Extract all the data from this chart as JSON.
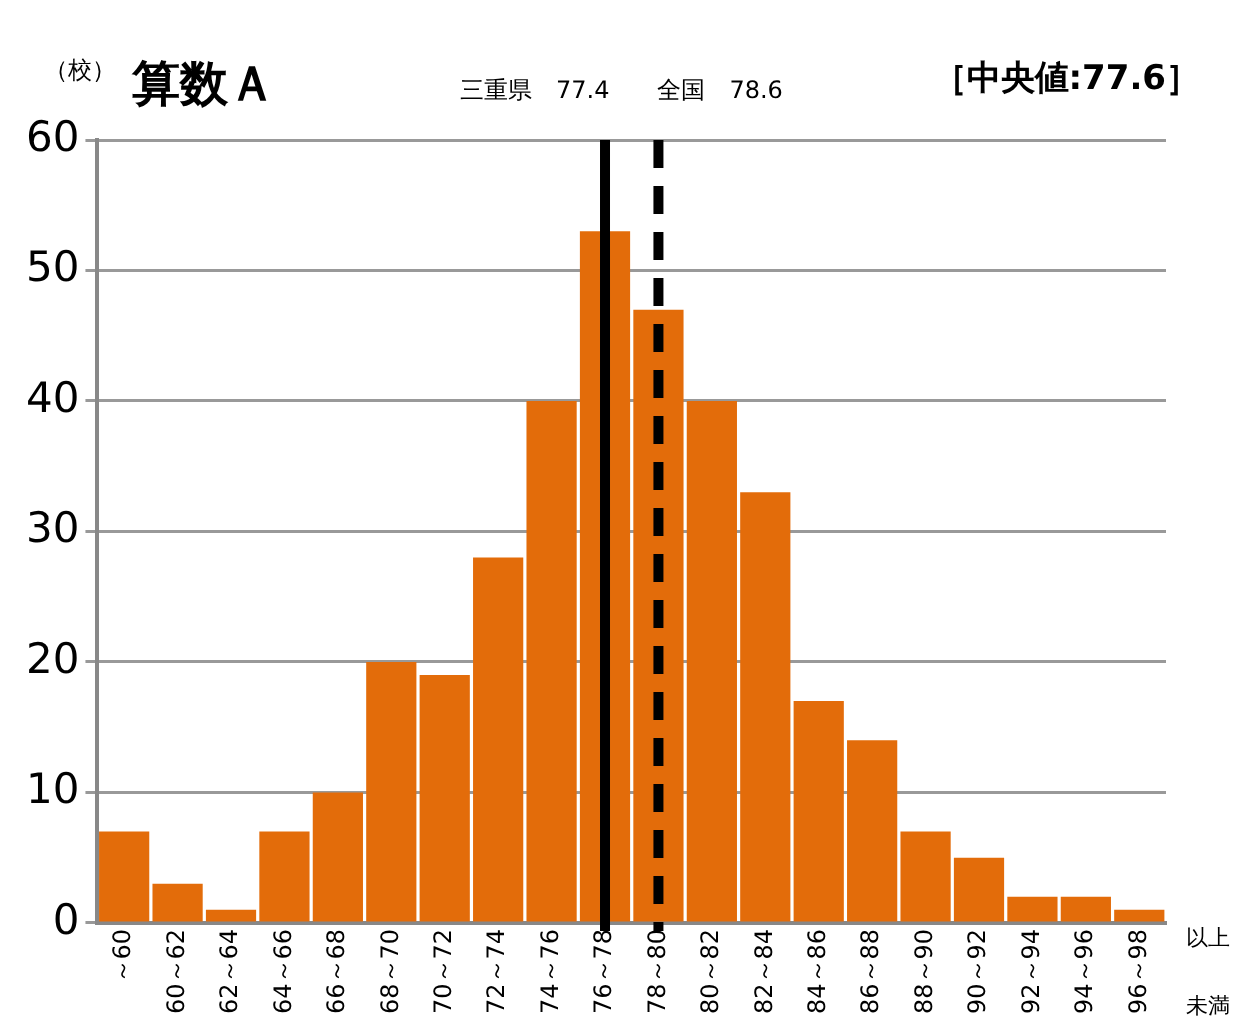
{
  "chart_data": {
    "type": "bar",
    "title": "算数Ａ",
    "ylabel": "（校）",
    "categories": [
      "～60",
      "60～62",
      "62～64",
      "64～66",
      "66～68",
      "68～70",
      "70～72",
      "72～74",
      "74～76",
      "76～78",
      "78～80",
      "80～82",
      "82～84",
      "84～86",
      "86～88",
      "88～90",
      "90～92",
      "92～94",
      "94～96",
      "96～98"
    ],
    "values": [
      7,
      3,
      1,
      7,
      10,
      20,
      19,
      28,
      40,
      53,
      47,
      40,
      33,
      17,
      14,
      7,
      5,
      2,
      2,
      1
    ],
    "color": "#e36c0a",
    "ylim": [
      0,
      60
    ],
    "yticks": [
      0,
      10,
      20,
      30,
      40,
      50,
      60
    ],
    "grid": "y",
    "ref_lines": [
      {
        "axis": "x",
        "value": "76～78",
        "label": "三重県　77.4",
        "color": "#000000",
        "line_style": "solid"
      },
      {
        "axis": "x",
        "value": "78～80",
        "label": "全国　78.6",
        "color": "#000000",
        "line_style": "dashed"
      }
    ],
    "annotations": [
      "［中央値:77.6］",
      "以上",
      "未満"
    ],
    "legend": false
  }
}
